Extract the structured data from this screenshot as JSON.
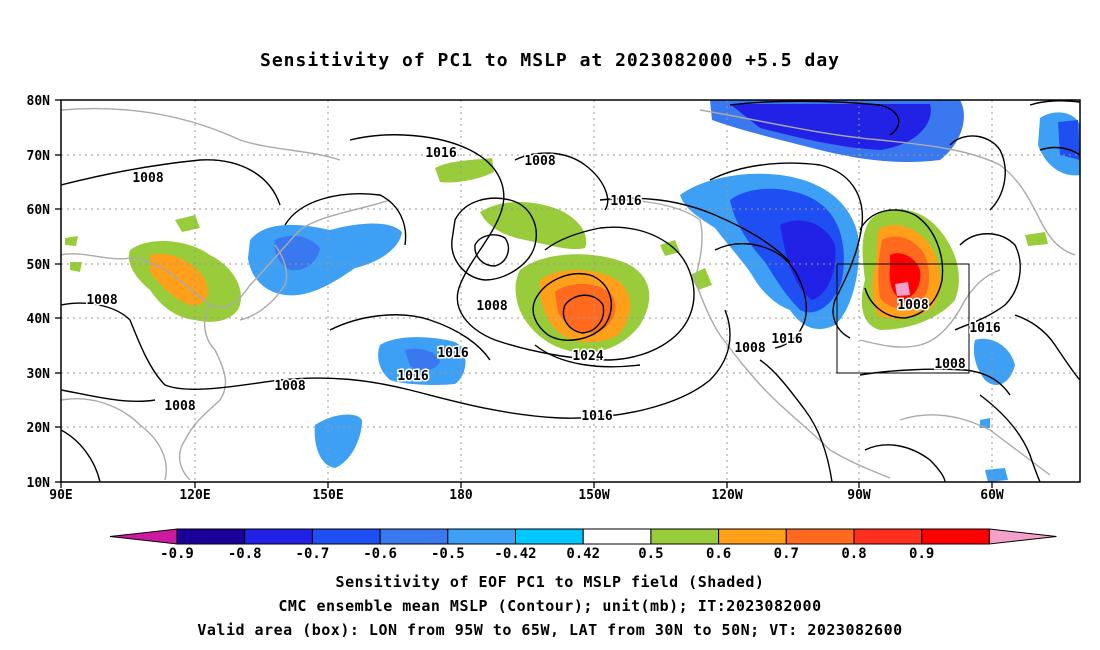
{
  "title": "Sensitivity of PC1 to MSLP at 2023082000 +5.5 day",
  "map": {
    "lat_ticks": [
      "80N",
      "70N",
      "60N",
      "50N",
      "40N",
      "30N",
      "20N",
      "10N"
    ],
    "lon_ticks": [
      "90E",
      "120E",
      "150E",
      "180",
      "150W",
      "120W",
      "90W",
      "60W"
    ],
    "contour_labels": [
      "1016",
      "1008",
      "1008",
      "1016",
      "1008",
      "1008",
      "1016",
      "1016",
      "1024",
      "1016",
      "1008",
      "1008",
      "1016",
      "1008",
      "1008",
      "1016"
    ],
    "valid_box": {
      "lon_from": "95W",
      "lon_to": "65W",
      "lat_from": "30N",
      "lat_to": "50N"
    }
  },
  "colorbar": {
    "labels": [
      "-0.9",
      "-0.8",
      "-0.7",
      "-0.6",
      "-0.5",
      "-0.42",
      "0.42",
      "0.5",
      "0.6",
      "0.7",
      "0.8",
      "0.9"
    ],
    "colors": [
      "#1a0099",
      "#2222e6",
      "#1f4ff2",
      "#3a78f0",
      "#3da0f5",
      "#00c8ff",
      "#ffffff",
      "#98cc3a",
      "#ff9f1a",
      "#ff6a1e",
      "#ff3020",
      "#ff0000"
    ],
    "end_low_color": "#cc1a9e",
    "end_high_color": "#f5a0c8"
  },
  "caption": {
    "line1": "Sensitivity of EOF PC1 to MSLP field (Shaded)",
    "line2": "CMC ensemble mean MSLP (Contour); unit(mb); IT:2023082000",
    "line3": "Valid area (box): LON from 95W to 65W, LAT from 30N to 50N; VT: 2023082600"
  }
}
